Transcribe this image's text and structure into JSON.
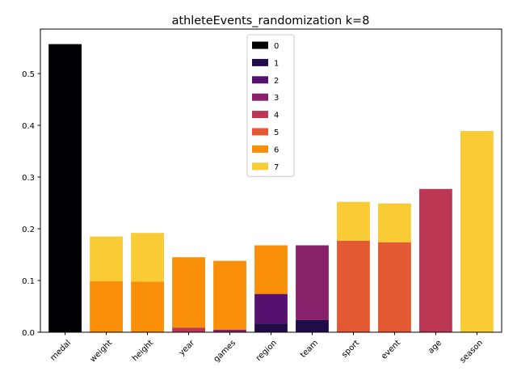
{
  "chart_data": {
    "type": "bar",
    "stacked": true,
    "title": "athleteEvents_randomization k=8",
    "xlabel": "",
    "ylabel": "",
    "categories": [
      "medal",
      "weight",
      "height",
      "year",
      "games",
      "region",
      "team",
      "sport",
      "event",
      "age",
      "season"
    ],
    "ylim": [
      0,
      0.586
    ],
    "yticks": [
      0.0,
      0.1,
      0.2,
      0.3,
      0.4,
      0.5
    ],
    "ytick_labels": [
      "0.0",
      "0.1",
      "0.2",
      "0.3",
      "0.4",
      "0.5"
    ],
    "grid": false,
    "legend_position": "top-center",
    "series": [
      {
        "name": "0",
        "color": "#000004",
        "values": [
          0.557,
          0,
          0,
          0,
          0,
          0,
          0,
          0,
          0,
          0,
          0
        ]
      },
      {
        "name": "1",
        "color": "#210c4a",
        "values": [
          0,
          0,
          0,
          0,
          0,
          0.017,
          0.024,
          0,
          0,
          0,
          0
        ]
      },
      {
        "name": "2",
        "color": "#56106e",
        "values": [
          0,
          0,
          0,
          0,
          0,
          0.057,
          0,
          0,
          0,
          0,
          0
        ]
      },
      {
        "name": "3",
        "color": "#89226a",
        "values": [
          0,
          0,
          0,
          0,
          0.005,
          0,
          0.144,
          0,
          0,
          0,
          0
        ]
      },
      {
        "name": "4",
        "color": "#bb3754",
        "values": [
          0,
          0,
          0,
          0.009,
          0,
          0,
          0,
          0,
          0,
          0.277,
          0
        ]
      },
      {
        "name": "5",
        "color": "#e35933",
        "values": [
          0,
          0,
          0,
          0,
          0,
          0,
          0,
          0.177,
          0.174,
          0,
          0
        ]
      },
      {
        "name": "6",
        "color": "#f98e09",
        "values": [
          0,
          0.099,
          0.098,
          0.136,
          0.133,
          0.094,
          0,
          0,
          0,
          0,
          0
        ]
      },
      {
        "name": "7",
        "color": "#f9cb35",
        "values": [
          0,
          0.086,
          0.094,
          0,
          0,
          0,
          0,
          0.075,
          0.075,
          0,
          0.389
        ]
      }
    ]
  }
}
